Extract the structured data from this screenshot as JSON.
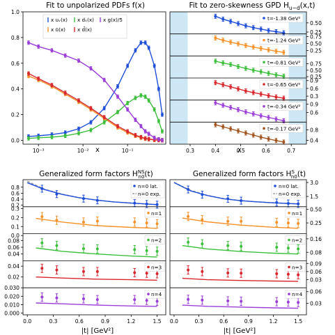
{
  "colors": {
    "blue": "#1f4fd8",
    "orange": "#f5922a",
    "green": "#3cbf3c",
    "red": "#d8262d",
    "purple": "#9b3ed8",
    "brown": "#a0521c",
    "gray": "#a0a0a0",
    "shade": "#cde7f4"
  },
  "titles": {
    "pdf": "Fit to unpolarized PDFs f(x)",
    "gpd": "Fit to zero-skewness GPD H",
    "gpd_sub": "u−d",
    "gpd_tail": "(x,t)",
    "ns": "Generalized form factors  H",
    "ns_sup": "NS",
    "ns_sub": "n0",
    "ns_tail": "(t)",
    "s": "Generalized form factors  H",
    "s_sup": "S",
    "s_sub": "n0",
    "s_tail": "(t)"
  },
  "axis_labels": {
    "pdf_x": "x",
    "gpd_x": "x",
    "ff_x_left": "|t| [GeV²]",
    "ff_x_right": "|t| [GeV²]"
  },
  "pdf_legend": [
    "x uᵥ(x)",
    "x ū(x)",
    "x dᵥ(x)",
    "x d̄(x)",
    "x g(x)/5"
  ],
  "gpd_labels": [
    "t=-1.38 GeV²",
    "t=-1.24 GeV²",
    "t=-0.81 GeV²",
    "t=-0.65 GeV²",
    "t=-0.34 GeV²",
    "t=-0.17 GeV²"
  ],
  "ff_labels": {
    "n0_lat": "n=0 lat.",
    "n0_exp": "n=0 exp.",
    "n1": "n=1",
    "n2": "n=2",
    "n3": "n=3",
    "n4": "n=4"
  },
  "chart_data": [
    {
      "type": "scatter",
      "title": "Fit to unpolarized PDFs f(x)",
      "xlabel": "x",
      "xscale": "log",
      "xlim": [
        0.00045,
        0.72
      ],
      "ylim": [
        -0.03,
        1.0
      ],
      "xticks": [
        "10⁻³",
        "10⁻²",
        "10⁻¹"
      ],
      "yticks": [
        "0.0",
        "0.2",
        "0.4",
        "0.6",
        "0.8",
        "1.0"
      ],
      "x": [
        0.0006,
        0.001,
        0.002,
        0.004,
        0.008,
        0.015,
        0.03,
        0.06,
        0.1,
        0.15,
        0.2,
        0.25,
        0.3,
        0.4,
        0.5,
        0.6
      ],
      "series": [
        {
          "name": "x uᵥ(x)",
          "color": "blue",
          "values": [
            0.03,
            0.035,
            0.045,
            0.06,
            0.09,
            0.14,
            0.25,
            0.42,
            0.58,
            0.7,
            0.76,
            0.76,
            0.72,
            0.58,
            0.4,
            0.2
          ]
        },
        {
          "name": "x ū(x)",
          "color": "orange",
          "values": [
            0.5,
            0.47,
            0.42,
            0.36,
            0.3,
            0.24,
            0.17,
            0.1,
            0.06,
            0.035,
            0.02,
            0.012,
            0.008,
            0.003,
            0.001,
            0.0
          ]
        },
        {
          "name": "x dᵥ(x)",
          "color": "green",
          "values": [
            0.015,
            0.02,
            0.025,
            0.035,
            0.055,
            0.08,
            0.14,
            0.22,
            0.29,
            0.33,
            0.35,
            0.34,
            0.31,
            0.24,
            0.15,
            0.07
          ]
        },
        {
          "name": "x d̄(x)",
          "color": "red",
          "values": [
            0.52,
            0.48,
            0.43,
            0.37,
            0.31,
            0.25,
            0.18,
            0.11,
            0.07,
            0.04,
            0.025,
            0.015,
            0.01,
            0.004,
            0.002,
            0.0
          ]
        },
        {
          "name": "x g(x)/5",
          "color": "purple",
          "values": [
            0.76,
            0.73,
            0.7,
            0.66,
            0.62,
            0.56,
            0.47,
            0.34,
            0.24,
            0.16,
            0.11,
            0.07,
            0.05,
            0.02,
            0.008,
            0.002
          ]
        }
      ]
    },
    {
      "type": "scatter",
      "title": "Fit to zero-skewness GPD H u−d (x,t)",
      "xlabel": "x",
      "xlim": [
        0.22,
        0.76
      ],
      "xticks": [
        "0.3",
        "0.4",
        "0.5",
        "0.6",
        "0.7"
      ],
      "shaded_x": [
        [
          0.22,
          0.29
        ],
        [
          0.69,
          0.76
        ]
      ],
      "x": [
        0.4,
        0.43,
        0.46,
        0.49,
        0.52,
        0.55,
        0.58,
        0.61,
        0.64,
        0.67
      ],
      "panels": [
        {
          "t": "t=-1.38 GeV²",
          "color": "blue",
          "ylim": [
            0.2,
            0.8
          ],
          "yticks": [
            "0.50",
            "0.25"
          ],
          "values": [
            0.68,
            0.6,
            0.54,
            0.48,
            0.42,
            0.37,
            0.33,
            0.29,
            0.26,
            0.23
          ]
        },
        {
          "t": "t=-1.24 GeV²",
          "color": "orange",
          "ylim": [
            0.05,
            0.85
          ],
          "yticks": [
            "0.75",
            "0.50",
            "0.25"
          ],
          "values": [
            0.7,
            0.62,
            0.55,
            0.49,
            0.43,
            0.37,
            0.32,
            0.27,
            0.22,
            0.18
          ]
        },
        {
          "t": "t=-0.81 GeV²",
          "color": "green",
          "ylim": [
            0.2,
            1.05
          ],
          "yticks": [
            "0.75",
            "0.50",
            "0.25"
          ],
          "values": [
            0.85,
            0.78,
            0.72,
            0.64,
            0.57,
            0.5,
            0.44,
            0.38,
            0.32,
            0.27
          ]
        },
        {
          "t": "t=-0.65 GeV²",
          "color": "red",
          "ylim": [
            0.15,
            1.0
          ],
          "yticks": [
            "0.9",
            "0.6",
            "0.3"
          ],
          "values": [
            0.82,
            0.74,
            0.66,
            0.58,
            0.5,
            0.44,
            0.38,
            0.32,
            0.27,
            0.22
          ]
        },
        {
          "t": "t=-0.34 GeV²",
          "color": "purple",
          "ylim": [
            0.25,
            1.05
          ],
          "yticks": [
            "0.9",
            "0.6"
          ],
          "values": [
            0.95,
            0.86,
            0.78,
            0.7,
            0.62,
            0.55,
            0.48,
            0.42,
            0.36,
            0.3
          ]
        },
        {
          "t": "t=-0.17 GeV²",
          "color": "brown",
          "ylim": [
            0.25,
            1.1
          ],
          "yticks": [
            "0.8",
            "0.4"
          ],
          "values": [
            1.0,
            0.92,
            0.84,
            0.76,
            0.68,
            0.6,
            0.52,
            0.45,
            0.39,
            0.33
          ]
        }
      ]
    },
    {
      "type": "scatter",
      "title": "Generalized form factors H NS n0 (t)",
      "xlabel": "|t| [GeV²]",
      "xlim": [
        -0.05,
        1.6
      ],
      "xticks": [
        "0.0",
        "0.3",
        "0.6",
        "0.9",
        "1.2",
        "1.5"
      ],
      "t": [
        0.17,
        0.34,
        0.65,
        0.81,
        1.24,
        1.38,
        1.5
      ],
      "panels": [
        {
          "n": 0,
          "color": "blue",
          "ylim": [
            0.15,
            1.05
          ],
          "yticks": [
            "0.8",
            "0.6",
            "0.4",
            "0.2"
          ],
          "values": [
            0.75,
            0.57,
            0.42,
            0.36,
            0.27,
            0.24,
            0.22
          ],
          "fit": [
            [
              0.0,
              0.95
            ],
            [
              0.2,
              0.72
            ],
            [
              0.4,
              0.56
            ],
            [
              0.6,
              0.45
            ],
            [
              0.8,
              0.37
            ],
            [
              1.0,
              0.31
            ],
            [
              1.2,
              0.27
            ],
            [
              1.5,
              0.22
            ]
          ],
          "exp": [
            [
              0.0,
              1.0
            ],
            [
              0.2,
              0.73
            ],
            [
              0.4,
              0.57
            ],
            [
              0.6,
              0.45
            ],
            [
              0.8,
              0.37
            ],
            [
              1.0,
              0.31
            ],
            [
              1.2,
              0.27
            ],
            [
              1.5,
              0.22
            ]
          ]
        },
        {
          "n": 1,
          "color": "orange",
          "ylim": [
            0.02,
            0.32
          ],
          "yticks": [
            "0.3",
            "0.2",
            "0.1",
            "0.0"
          ],
          "values": [
            0.21,
            0.17,
            0.15,
            0.16,
            0.15,
            0.14,
            0.13
          ],
          "fit": [
            [
              0.1,
              0.19
            ],
            [
              0.4,
              0.15
            ],
            [
              0.8,
              0.11
            ],
            [
              1.2,
              0.09
            ],
            [
              1.5,
              0.08
            ]
          ]
        },
        {
          "n": 2,
          "color": "green",
          "ylim": [
            0.02,
            0.1
          ],
          "yticks": [
            "0.08",
            "0.06",
            "0.04"
          ],
          "values": [
            0.073,
            0.065,
            0.056,
            0.055,
            0.053,
            0.05,
            0.048
          ],
          "fit": [
            [
              0.1,
              0.058
            ],
            [
              0.4,
              0.048
            ],
            [
              0.8,
              0.04
            ],
            [
              1.2,
              0.034
            ],
            [
              1.5,
              0.031
            ]
          ]
        },
        {
          "n": 3,
          "color": "red",
          "ylim": [
            0.0,
            0.05
          ],
          "yticks": [
            "0.04",
            "0.02"
          ],
          "values": [
            0.036,
            0.033,
            0.03,
            0.03,
            0.028,
            0.027,
            0.026
          ],
          "fit": [
            [
              0.1,
              0.02
            ],
            [
              0.4,
              0.018
            ],
            [
              0.8,
              0.016
            ],
            [
              1.2,
              0.015
            ],
            [
              1.5,
              0.014
            ]
          ]
        },
        {
          "n": 4,
          "color": "purple",
          "ylim": [
            -0.002,
            0.03
          ],
          "yticks": [
            "0.030",
            "0.020",
            "0.010",
            "0.000"
          ],
          "values": [
            0.019,
            0.018,
            0.017,
            0.016,
            0.016,
            0.015,
            0.014
          ],
          "fit": [
            [
              0.1,
              0.012
            ],
            [
              0.4,
              0.011
            ],
            [
              0.8,
              0.0095
            ],
            [
              1.2,
              0.0085
            ],
            [
              1.5,
              0.008
            ]
          ]
        }
      ]
    },
    {
      "type": "scatter",
      "title": "Generalized form factors H S n0 (t)",
      "xlabel": "|t| [GeV²]",
      "xlim": [
        -0.05,
        1.6
      ],
      "xticks": [
        "0.0",
        "0.3",
        "0.6",
        "0.9",
        "1.2",
        "1.5"
      ],
      "t": [
        0.17,
        0.34,
        0.65,
        0.81,
        1.24,
        1.38,
        1.5
      ],
      "panels": [
        {
          "n": 0,
          "color": "blue",
          "ylim": [
            0.4,
            3.3
          ],
          "yticks": [
            "3.0",
            "1.5"
          ],
          "values": [
            2.25,
            1.7,
            1.25,
            1.05,
            0.85,
            0.75,
            0.7
          ],
          "fit": [
            [
              0.0,
              3.0
            ],
            [
              0.2,
              2.1
            ],
            [
              0.4,
              1.6
            ],
            [
              0.6,
              1.25
            ],
            [
              0.8,
              1.05
            ],
            [
              1.0,
              0.92
            ],
            [
              1.2,
              0.82
            ],
            [
              1.5,
              0.7
            ]
          ],
          "exp": [
            [
              0.0,
              3.0
            ],
            [
              0.2,
              2.15
            ],
            [
              0.4,
              1.62
            ],
            [
              0.6,
              1.27
            ],
            [
              0.8,
              1.06
            ],
            [
              1.0,
              0.92
            ],
            [
              1.2,
              0.82
            ],
            [
              1.5,
              0.7
            ]
          ]
        },
        {
          "n": 1,
          "color": "orange",
          "ylim": [
            0.05,
            0.55
          ],
          "yticks": [
            "0.50",
            "0.25"
          ],
          "values": [
            0.37,
            0.31,
            0.28,
            0.28,
            0.26,
            0.25,
            0.24
          ],
          "fit": [
            [
              0.1,
              0.34
            ],
            [
              0.4,
              0.27
            ],
            [
              0.8,
              0.21
            ],
            [
              1.2,
              0.17
            ],
            [
              1.5,
              0.15
            ]
          ]
        },
        {
          "n": 2,
          "color": "green",
          "ylim": [
            0.03,
            0.19
          ],
          "yticks": [
            "0.16",
            "0.08"
          ],
          "values": [
            0.14,
            0.13,
            0.12,
            0.115,
            0.11,
            0.105,
            0.1
          ],
          "fit": [
            [
              0.1,
              0.12
            ],
            [
              0.4,
              0.1
            ],
            [
              0.8,
              0.085
            ],
            [
              1.2,
              0.075
            ],
            [
              1.5,
              0.07
            ]
          ]
        },
        {
          "n": 3,
          "color": "red",
          "ylim": [
            0.0,
            0.1
          ],
          "yticks": [
            "0.09",
            "0.06",
            "0.03"
          ],
          "values": [
            0.066,
            0.06,
            0.055,
            0.054,
            0.052,
            0.05,
            0.048
          ],
          "fit": [
            [
              0.1,
              0.035
            ],
            [
              0.4,
              0.03
            ],
            [
              0.8,
              0.027
            ],
            [
              1.2,
              0.025
            ],
            [
              1.5,
              0.024
            ]
          ]
        },
        {
          "n": 4,
          "color": "purple",
          "ylim": [
            0.0,
            0.07
          ],
          "yticks": [
            "0.06",
            "0.03"
          ],
          "values": [
            0.04,
            0.038,
            0.036,
            0.035,
            0.034,
            0.033,
            0.032
          ],
          "fit": [
            [
              0.1,
              0.025
            ],
            [
              0.4,
              0.022
            ],
            [
              0.8,
              0.02
            ],
            [
              1.2,
              0.018
            ],
            [
              1.5,
              0.017
            ]
          ]
        }
      ]
    }
  ]
}
